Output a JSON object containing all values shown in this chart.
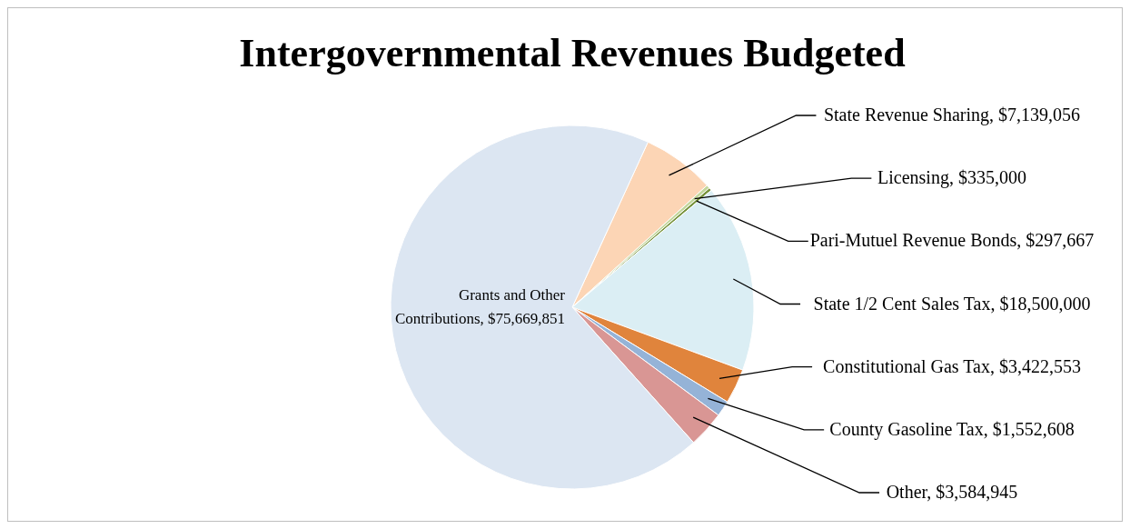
{
  "chart_data": {
    "type": "pie",
    "title": "Intergovernmental Revenues Budgeted",
    "categories": [
      "State Revenue Sharing",
      "Licensing",
      "Pari-Mutuel Revenue Bonds",
      "State 1/2 Cent Sales Tax",
      "Constitutional Gas Tax",
      "County Gasoline Tax",
      "Other",
      "Grants and Other Contributions"
    ],
    "values": [
      7139056,
      335000,
      297667,
      18500000,
      3422553,
      1552608,
      3584945,
      75669851
    ],
    "value_labels": [
      "$7,139,056",
      "$335,000",
      "$297,667",
      "$18,500,000",
      "$3,422,553",
      "$1,552,608",
      "$3,584,945",
      "$75,669,851"
    ],
    "colors": [
      "#fcd5b5",
      "#c3d69b",
      "#77933c",
      "#dbeef4",
      "#e0843c",
      "#95b3d7",
      "#d99694",
      "#dce6f2"
    ]
  }
}
